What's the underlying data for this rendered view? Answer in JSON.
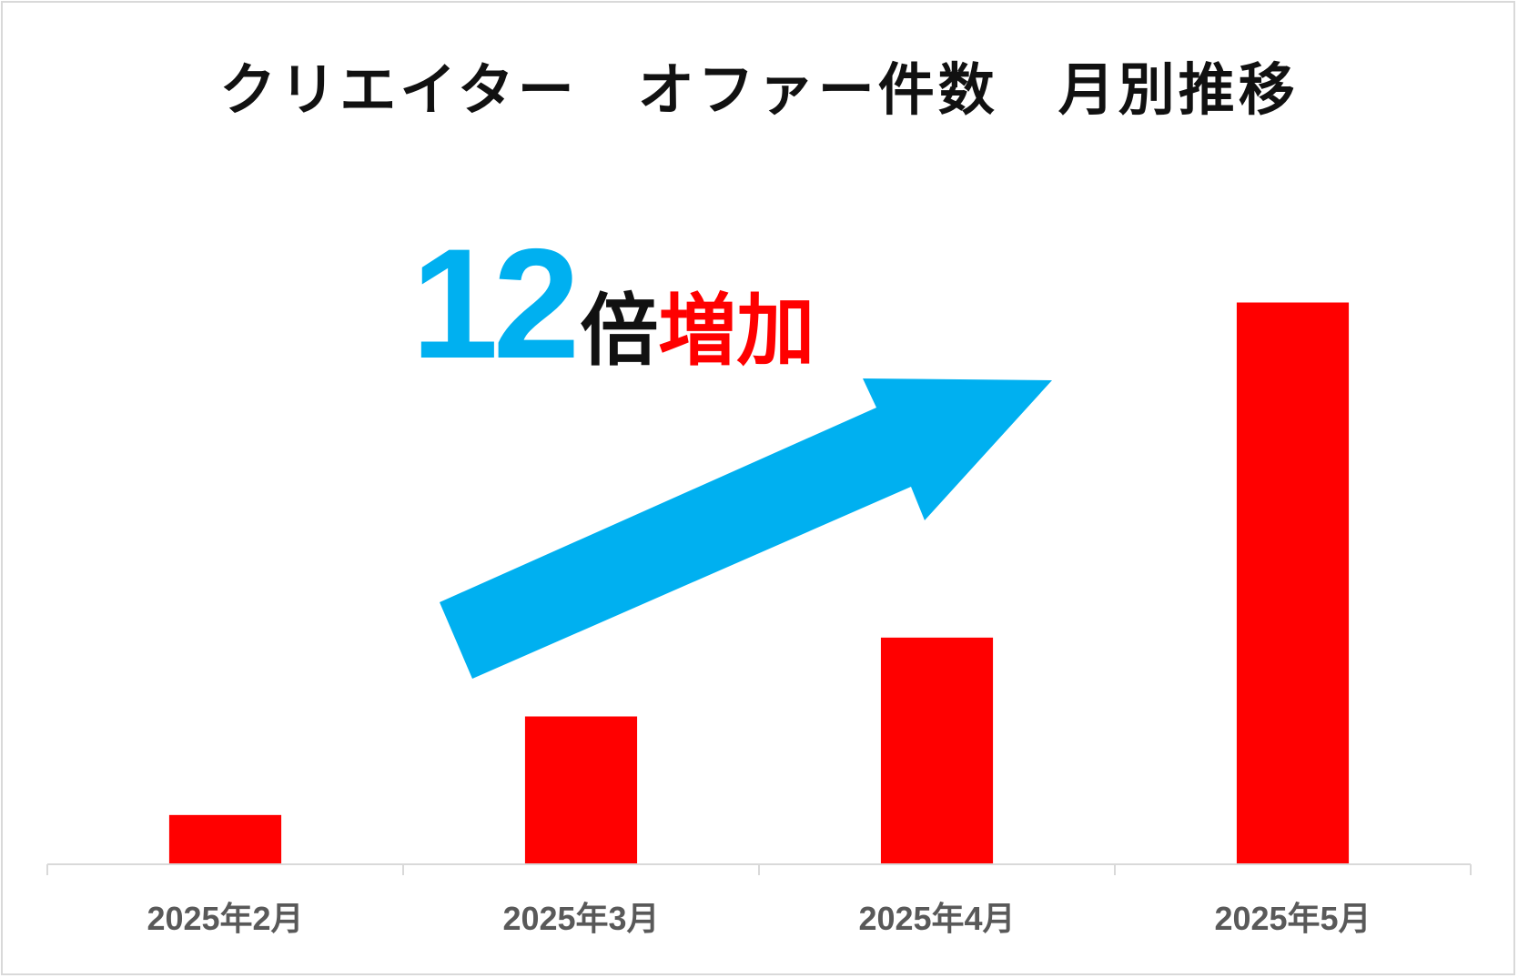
{
  "chart_data": {
    "type": "bar",
    "title": "クリエイター　オファー件数　月別推移",
    "categories": [
      "2025年2月",
      "2025年3月",
      "2025年4月",
      "2025年5月"
    ],
    "values": [
      1,
      3,
      4.6,
      11.4
    ],
    "ylim": [
      0,
      12
    ],
    "xlabel": "",
    "ylabel": "",
    "grid": false,
    "legend": "none",
    "bar_color": "#ff0000",
    "axis_color": "#d9d9d9",
    "tick_label_color": "#595959",
    "annotation": {
      "number": "12",
      "unit": "倍",
      "word": "増加",
      "number_color": "#00b0f0",
      "word_color": "#ff0000",
      "arrow": "up-right-arrow",
      "arrow_color": "#00b0f0"
    }
  }
}
